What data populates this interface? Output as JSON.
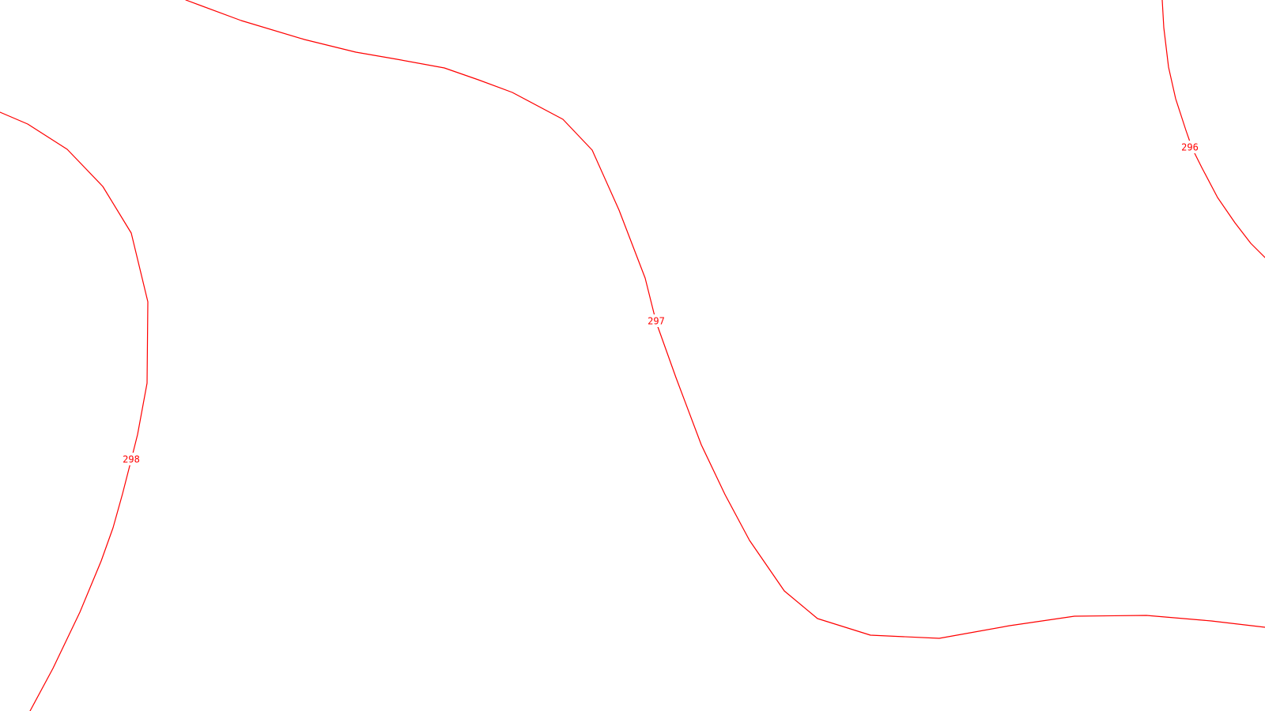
{
  "map": {
    "background_color": "#ffffff",
    "contour_color": "#ff0000",
    "contours": [
      {
        "id": "contour-296",
        "elevation_label": "296"
      },
      {
        "id": "contour-297",
        "elevation_label": "297"
      },
      {
        "id": "contour-298",
        "elevation_label": "298"
      }
    ]
  }
}
